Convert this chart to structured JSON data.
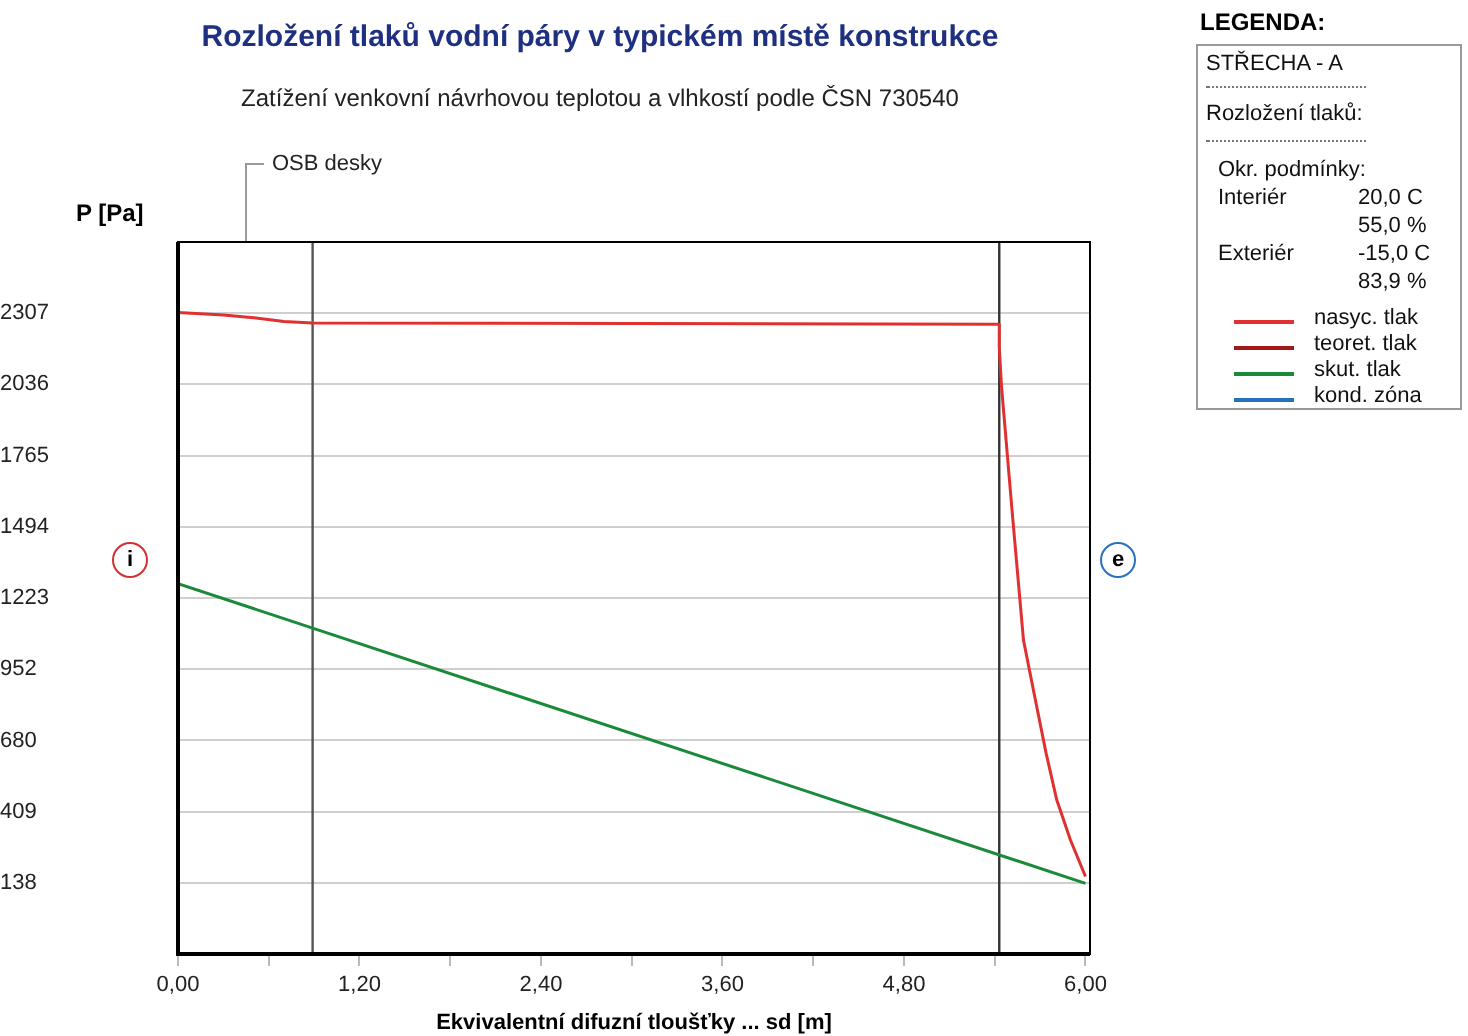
{
  "chart_data": {
    "type": "line",
    "title": "Rozložení tlaků vodní páry v typickém místě konstrukce",
    "subtitle": "Zatížení venkovní návrhovou teplotou a vlhkostí podle ČSN 730540",
    "xlabel": "Ekvivalentní difuzní tloušťky ... sd [m]",
    "ylabel": "P [Pa]",
    "legend_title": "LEGENDA:",
    "legend": "top right",
    "grid": "y",
    "marker": "none",
    "line_style": "solid",
    "xlim": [
      0,
      6.03
    ],
    "xticks": [
      {
        "value": 0,
        "label": "0,00"
      },
      {
        "value": 0.6,
        "label": null
      },
      {
        "value": 1.2,
        "label": "1,20"
      },
      {
        "value": 1.8,
        "label": null
      },
      {
        "value": 2.4,
        "label": "2,40"
      },
      {
        "value": 3,
        "label": null
      },
      {
        "value": 3.6,
        "label": "3,60"
      },
      {
        "value": 4.2,
        "label": null
      },
      {
        "value": 4.8,
        "label": "4,80"
      },
      {
        "value": 5.4,
        "label": null
      },
      {
        "value": 6,
        "label": "6,00"
      }
    ],
    "ylim": [
      -133,
      2578
    ],
    "yticks": [
      138,
      409,
      680,
      952,
      1223,
      1494,
      1765,
      2036,
      2307
    ],
    "series": [
      {
        "name": "nasyc. tlak",
        "color": "#e03030",
        "x": [
          0,
          0.3,
          0.5,
          0.7,
          0.89,
          5.43,
          5.43,
          5.445,
          5.52,
          5.59,
          5.66,
          5.74,
          5.81,
          5.9,
          6.0
        ],
        "values": [
          2310,
          2300,
          2290,
          2275,
          2270,
          2265,
          2179,
          2027,
          1520,
          1063,
          860,
          631,
          454,
          302,
          162
        ]
      },
      {
        "name": "teoret. tlak",
        "color": "#a01818"
      },
      {
        "name": "skut. tlak",
        "color": "#1a8a3a",
        "x": [
          0,
          6.0
        ],
        "values": [
          1277,
          136
        ]
      },
      {
        "name": "kond. zóna",
        "color": "#2a70c0"
      }
    ],
    "ref_lines": [
      {
        "axis": "x",
        "value": 0.89,
        "color": "#555555"
      },
      {
        "axis": "x",
        "value": 5.43,
        "color": "#333333"
      }
    ],
    "annotations": [
      "OSB desky",
      "STŘECHA - A",
      "Rozložení tlaků:",
      "Okr. podmínky:",
      "Interiér",
      "20,0 C",
      "55,0 %",
      "Exteriér",
      "-15,0 C",
      "83,9 %",
      "i",
      "e"
    ]
  }
}
